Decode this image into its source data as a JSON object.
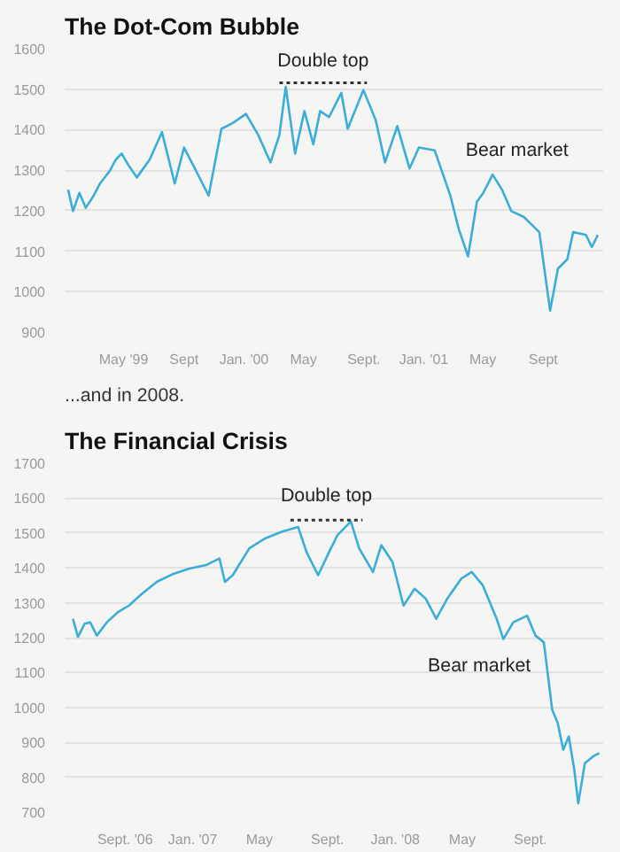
{
  "chart_data": [
    {
      "type": "line",
      "title": "The Dot-Com Bubble",
      "grid": "y",
      "line_style": "solid",
      "marker": "none",
      "xlim": [
        "1999-01-01",
        "2002-01-01"
      ],
      "ylim": [
        900,
        1600
      ],
      "yticks": [
        900,
        1000,
        1100,
        1200,
        1300,
        1400,
        1500,
        1600
      ],
      "xticks": [
        {
          "value": "1999-05-01",
          "label": "May '99"
        },
        {
          "value": "1999-09-01",
          "label": "Sept"
        },
        {
          "value": "2000-01-01",
          "label": "Jan. '00"
        },
        {
          "value": "2000-05-01",
          "label": "May"
        },
        {
          "value": "2000-09-01",
          "label": "Sept."
        },
        {
          "value": "2001-01-01",
          "label": "Jan. '01"
        },
        {
          "value": "2001-05-01",
          "label": "May"
        },
        {
          "value": "2001-09-01",
          "label": "Sept"
        }
      ],
      "series": [
        {
          "color": "#3aaed8",
          "x": [
            "1999-01-08",
            "1999-01-18",
            "1999-01-31",
            "1999-02-13",
            "1999-03-01",
            "1999-03-14",
            "1999-04-02",
            "1999-04-15",
            "1999-04-27",
            "1999-05-10",
            "1999-05-28",
            "1999-06-23",
            "1999-07-18",
            "1999-08-13",
            "1999-09-01",
            "1999-09-26",
            "1999-10-21",
            "1999-11-16",
            "1999-12-10",
            "2000-01-05",
            "2000-01-30",
            "2000-02-24",
            "2000-03-13",
            "2000-03-26",
            "2000-04-14",
            "2000-05-03",
            "2000-05-21",
            "2000-06-04",
            "2000-06-22",
            "2000-07-17",
            "2000-07-30",
            "2000-08-31",
            "2000-09-25",
            "2000-10-14",
            "2000-11-08",
            "2000-12-03",
            "2000-12-22",
            "2001-01-23",
            "2001-02-24",
            "2001-03-13",
            "2001-04-01",
            "2001-04-19",
            "2001-05-02",
            "2001-05-21",
            "2001-06-09",
            "2001-06-28",
            "2001-07-23",
            "2001-08-24",
            "2001-09-15",
            "2001-10-01",
            "2001-10-20",
            "2001-11-01",
            "2001-11-27",
            "2001-12-09",
            "2001-12-21"
          ],
          "values": [
            1252,
            1199,
            1244,
            1207,
            1237,
            1267,
            1297,
            1326,
            1341,
            1314,
            1282,
            1326,
            1394,
            1267,
            1356,
            1297,
            1237,
            1402,
            1417,
            1439,
            1387,
            1319,
            1387,
            1506,
            1341,
            1446,
            1364,
            1446,
            1431,
            1491,
            1402,
            1498,
            1424,
            1319,
            1409,
            1304,
            1356,
            1349,
            1237,
            1155,
            1087,
            1222,
            1244,
            1289,
            1252,
            1199,
            1185,
            1147,
            953,
            1057,
            1080,
            1147,
            1140,
            1110,
            1140
          ]
        },
        {
          "color": "#333333",
          "line_style": "dotted",
          "x": [
            "2000-03-13",
            "2000-09-07"
          ],
          "values": [
            1516,
            1516
          ]
        }
      ],
      "annotations": [
        "Double top",
        "Bear market"
      ]
    },
    {
      "type": "line",
      "title": "The Financial Crisis",
      "subtitle": "...and in 2008.",
      "grid": "y",
      "line_style": "solid",
      "marker": "none",
      "xlim": [
        "2006-05-15",
        "2009-01-10"
      ],
      "ylim": [
        700,
        1700
      ],
      "yticks": [
        700,
        800,
        900,
        1000,
        1100,
        1200,
        1300,
        1400,
        1500,
        1600,
        1700
      ],
      "xticks": [
        {
          "value": "2006-09-01",
          "label": "Sept. '06"
        },
        {
          "value": "2007-01-01",
          "label": "Jan. '07"
        },
        {
          "value": "2007-05-01",
          "label": "May"
        },
        {
          "value": "2007-09-01",
          "label": "Sept."
        },
        {
          "value": "2008-01-01",
          "label": "Jan. '08"
        },
        {
          "value": "2008-05-01",
          "label": "May"
        },
        {
          "value": "2008-09-01",
          "label": "Sept."
        }
      ],
      "series": [
        {
          "color": "#3aaed8",
          "x": [
            "2006-05-30",
            "2006-06-08",
            "2006-06-20",
            "2006-06-30",
            "2006-07-12",
            "2006-07-30",
            "2006-08-19",
            "2006-09-08",
            "2006-09-28",
            "2006-10-28",
            "2006-11-27",
            "2006-12-26",
            "2007-01-25",
            "2007-02-18",
            "2007-02-28",
            "2007-03-14",
            "2007-04-13",
            "2007-05-12",
            "2007-06-11",
            "2007-07-10",
            "2007-07-25",
            "2007-08-15",
            "2007-09-04",
            "2007-09-19",
            "2007-10-13",
            "2007-10-28",
            "2007-11-22",
            "2007-12-07",
            "2007-12-27",
            "2008-01-16",
            "2008-02-05",
            "2008-02-25",
            "2008-03-15",
            "2008-04-04",
            "2008-04-29",
            "2008-05-18",
            "2008-06-07",
            "2008-07-02",
            "2008-07-14",
            "2008-08-01",
            "2008-08-26",
            "2008-09-10",
            "2008-09-25",
            "2008-10-10",
            "2008-10-20",
            "2008-10-30",
            "2008-11-09",
            "2008-11-19",
            "2008-11-26",
            "2008-12-08",
            "2008-12-23",
            "2009-01-03"
          ],
          "values": [
            1254,
            1202,
            1240,
            1244,
            1206,
            1244,
            1273,
            1292,
            1321,
            1360,
            1383,
            1398,
            1408,
            1427,
            1360,
            1379,
            1456,
            1485,
            1504,
            1517,
            1446,
            1379,
            1446,
            1494,
            1533,
            1456,
            1388,
            1465,
            1417,
            1292,
            1340,
            1312,
            1254,
            1312,
            1369,
            1388,
            1350,
            1254,
            1196,
            1244,
            1263,
            1206,
            1187,
            994,
            956,
            879,
            917,
            821,
            725,
            840,
            860,
            869
          ]
        },
        {
          "color": "#333333",
          "line_style": "dotted",
          "x": [
            "2007-06-26",
            "2007-11-03"
          ],
          "values": [
            1537,
            1537
          ]
        }
      ],
      "annotations": [
        "Double top",
        "Bear market"
      ]
    }
  ]
}
